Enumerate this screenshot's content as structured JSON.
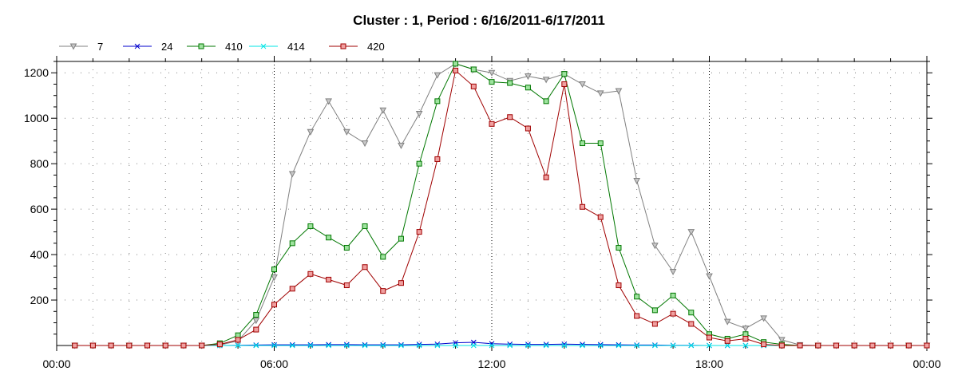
{
  "chart_data": {
    "type": "line",
    "title": "Cluster : 1, Period : 6/16/2011-6/17/2011",
    "xlabel": "",
    "ylabel": "",
    "x_unit": "hour",
    "xlim": [
      0,
      24
    ],
    "ylim": [
      0,
      1250
    ],
    "x_ticks": [
      0,
      6,
      12,
      18,
      24
    ],
    "x_tick_labels": [
      "00:00",
      "06:00",
      "12:00",
      "18:00",
      "00:00"
    ],
    "y_ticks": [
      200,
      400,
      600,
      800,
      1000,
      1200
    ],
    "y_tick_labels": [
      "200",
      "400",
      "600",
      "800",
      "1000",
      "1200"
    ],
    "grid": true,
    "legend_position": "top-left",
    "x": [
      0.5,
      1,
      1.5,
      2,
      2.5,
      3,
      3.5,
      4,
      4.5,
      5,
      5.5,
      6,
      6.5,
      7,
      7.5,
      8,
      8.5,
      9,
      9.5,
      10,
      10.5,
      11,
      11.5,
      12,
      12.5,
      13,
      13.5,
      14,
      14.5,
      15,
      15.5,
      16,
      16.5,
      17,
      17.5,
      18,
      18.5,
      19,
      19.5,
      20,
      20.5,
      21,
      21.5,
      22,
      22.5,
      23,
      23.5,
      24
    ],
    "series": [
      {
        "name": "7",
        "color": "#808080",
        "marker": "triangle-down",
        "values": [
          0,
          0,
          0,
          0,
          0,
          0,
          0,
          0,
          2,
          20,
          110,
          300,
          755,
          940,
          1075,
          940,
          890,
          1035,
          880,
          1020,
          1190,
          1240,
          1215,
          1200,
          1165,
          1185,
          1170,
          1195,
          1150,
          1110,
          1120,
          725,
          440,
          325,
          500,
          305,
          105,
          75,
          120,
          25,
          2,
          0,
          0,
          0,
          0,
          0,
          0,
          0
        ]
      },
      {
        "name": "24",
        "color": "#0000cc",
        "marker": "x",
        "values": [
          0,
          0,
          0,
          0,
          0,
          0,
          0,
          0,
          0,
          1,
          2,
          3,
          3,
          3,
          4,
          4,
          3,
          3,
          3,
          5,
          6,
          12,
          14,
          8,
          6,
          5,
          5,
          6,
          5,
          4,
          3,
          2,
          2,
          1,
          1,
          0,
          0,
          0,
          0,
          0,
          0,
          0,
          0,
          0,
          0,
          0,
          0,
          0
        ]
      },
      {
        "name": "410",
        "color": "#007700",
        "marker": "square",
        "values": [
          0,
          0,
          0,
          0,
          0,
          0,
          0,
          0,
          10,
          45,
          135,
          335,
          450,
          525,
          475,
          430,
          525,
          390,
          470,
          800,
          1075,
          1240,
          1215,
          1160,
          1155,
          1135,
          1075,
          1195,
          890,
          890,
          430,
          215,
          155,
          220,
          145,
          50,
          30,
          50,
          15,
          5,
          0,
          0,
          0,
          0,
          0,
          0,
          0,
          0
        ]
      },
      {
        "name": "414",
        "color": "#00e5e5",
        "marker": "x",
        "values": [
          0,
          0,
          0,
          0,
          0,
          0,
          0,
          0,
          0,
          0,
          0,
          0,
          0,
          0,
          0,
          0,
          0,
          0,
          0,
          0,
          0,
          0,
          0,
          0,
          0,
          0,
          0,
          0,
          0,
          0,
          0,
          0,
          0,
          0,
          0,
          0,
          0,
          0,
          0,
          0,
          0,
          0,
          0,
          0,
          0,
          0,
          0,
          0
        ]
      },
      {
        "name": "420",
        "color": "#a00000",
        "marker": "square",
        "values": [
          0,
          0,
          0,
          0,
          0,
          0,
          0,
          0,
          5,
          25,
          70,
          180,
          250,
          315,
          290,
          265,
          345,
          240,
          275,
          500,
          820,
          1210,
          1140,
          975,
          1005,
          955,
          740,
          1150,
          610,
          565,
          265,
          130,
          95,
          140,
          95,
          35,
          20,
          30,
          5,
          0,
          0,
          0,
          0,
          0,
          0,
          0,
          0,
          0
        ]
      }
    ]
  }
}
